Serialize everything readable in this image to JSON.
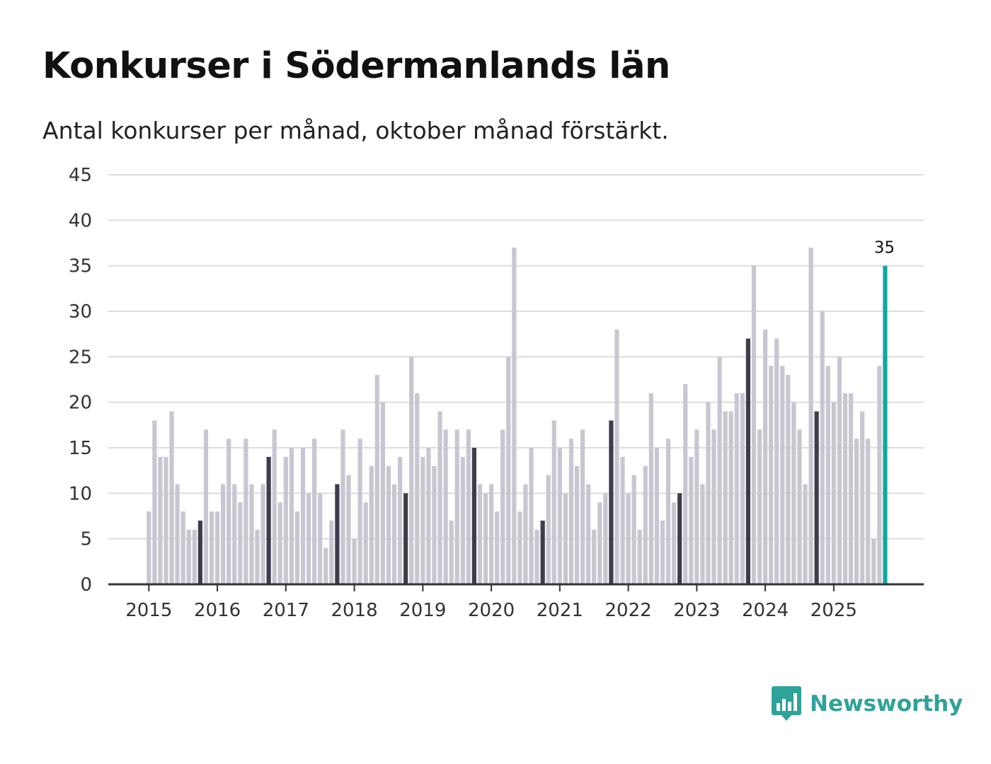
{
  "header": {
    "title": "Konkurser i Södermanlands län",
    "subtitle": "Antal konkurser per månad, oktober månad förstärkt."
  },
  "brand": {
    "name": "Newsworthy",
    "icon": "newsworthy-logo-icon",
    "color": "#2fa39a"
  },
  "colors": {
    "bar": "#c8c7d1",
    "october": "#3f3d4c",
    "latest": "#12a89d",
    "grid": "#dcdcdc",
    "axis": "#333333"
  },
  "chart_data": {
    "type": "bar",
    "title": "Konkurser i Södermanlands län",
    "subtitle": "Antal konkurser per månad, oktober månad förstärkt.",
    "xlabel": "",
    "ylabel": "",
    "ylim": [
      0,
      45
    ],
    "yticks": [
      0,
      5,
      10,
      15,
      20,
      25,
      30,
      35,
      40,
      45
    ],
    "grid": true,
    "start": "2015-01",
    "highlight_month": "oktober",
    "xticks": [
      "2015",
      "2016",
      "2017",
      "2018",
      "2019",
      "2020",
      "2021",
      "2022",
      "2023",
      "2024",
      "2025"
    ],
    "annotation": {
      "label": "35",
      "month": "2025-10",
      "value": 35
    },
    "values": [
      8,
      18,
      14,
      14,
      19,
      11,
      8,
      6,
      6,
      7,
      17,
      8,
      8,
      11,
      16,
      11,
      9,
      16,
      11,
      6,
      11,
      14,
      17,
      9,
      14,
      15,
      8,
      15,
      10,
      16,
      10,
      4,
      7,
      11,
      17,
      12,
      5,
      16,
      9,
      13,
      23,
      20,
      13,
      11,
      14,
      10,
      25,
      21,
      14,
      15,
      13,
      19,
      17,
      7,
      17,
      14,
      17,
      15,
      11,
      10,
      11,
      8,
      17,
      25,
      37,
      8,
      11,
      15,
      6,
      7,
      12,
      18,
      15,
      10,
      16,
      13,
      17,
      11,
      6,
      9,
      10,
      18,
      28,
      14,
      10,
      12,
      6,
      13,
      21,
      15,
      7,
      16,
      9,
      10,
      22,
      14,
      17,
      11,
      20,
      17,
      25,
      19,
      19,
      21,
      21,
      27,
      35,
      17,
      28,
      24,
      27,
      24,
      23,
      20,
      17,
      11,
      37,
      19,
      30,
      24,
      20,
      25,
      21,
      21,
      16,
      19,
      16,
      5,
      24,
      35
    ]
  }
}
